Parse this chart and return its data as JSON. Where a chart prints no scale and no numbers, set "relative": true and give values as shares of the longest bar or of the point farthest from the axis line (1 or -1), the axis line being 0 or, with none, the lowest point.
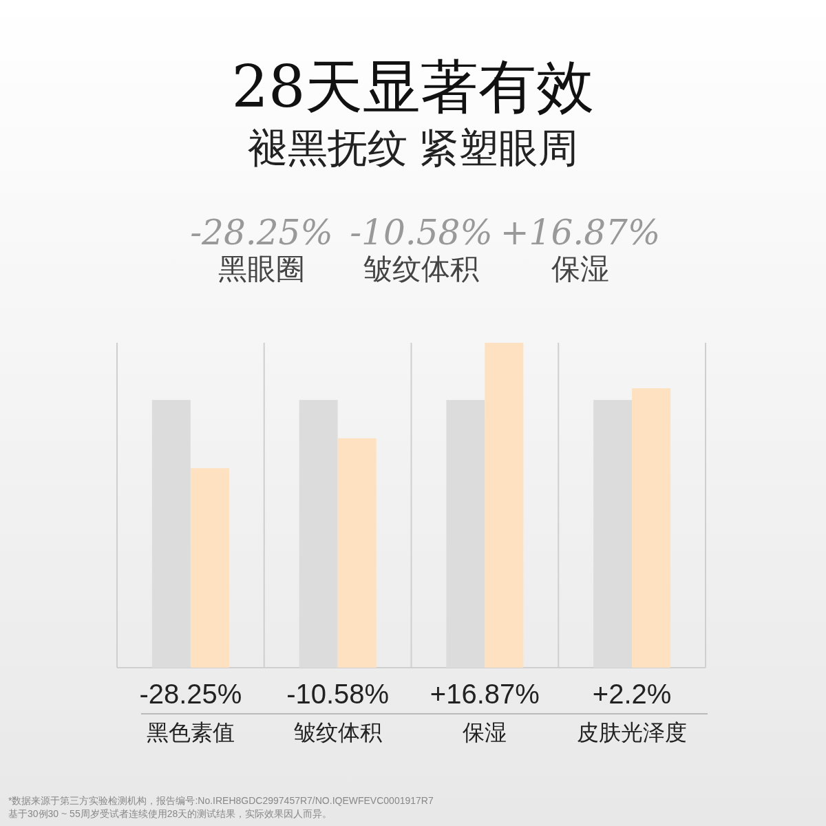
{
  "chart_data": {
    "type": "bar",
    "relative": true,
    "title": "28天显著有效",
    "subtitle": "褪黑抚纹 紧塑眼周",
    "categories": [
      "黑色素值",
      "皱纹体积",
      "保湿",
      "皮肤光泽度"
    ],
    "series": [
      {
        "color": "#dcdcdc",
        "values": [
          0.824,
          0.824,
          0.824,
          0.824
        ]
      },
      {
        "color": "#fde1c0",
        "values": [
          0.614,
          0.706,
          1,
          0.86
        ]
      }
    ],
    "grid": "x",
    "annotations": [
      "-28.25%",
      "黑眼圈",
      "-10.58%",
      "皱纹体积",
      "+16.87%",
      "保湿",
      "-28.25%",
      "-10.58%",
      "+16.87%",
      "+2.2%",
      "*数据来源于第三方实验检测机构，报告编号:No.IREH8GDC2997457R7/NO.IQEWFEVC0001917R7",
      "基于30例30 ~ 55周岁受试者连续使用28天的测试结果，实际效果因人而异。"
    ]
  }
}
